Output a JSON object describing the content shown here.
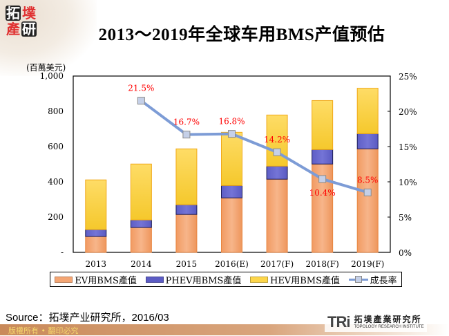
{
  "header": {
    "logo_chars": [
      "拓",
      "墣",
      "產",
      "研"
    ],
    "title": "2013～2019年全球车用BMS产值预估"
  },
  "chart_data": {
    "type": "bar",
    "stacked": true,
    "title": "2013～2019年全球车用BMS产值预估",
    "ylabel": "(百萬美元)",
    "ylabel_right": "",
    "xlabel": "",
    "categories": [
      "2013",
      "2014",
      "2015",
      "2016(E)",
      "2017(F)",
      "2018(F)",
      "2019(F)"
    ],
    "ylim": [
      0,
      1000
    ],
    "yticks": [
      0,
      200,
      400,
      600,
      800,
      1000
    ],
    "ytick_labels": [
      "-",
      "200",
      "400",
      "600",
      "800",
      "1,000"
    ],
    "y2lim": [
      0,
      25
    ],
    "y2ticks": [
      0,
      5,
      10,
      15,
      20,
      25
    ],
    "y2tick_labels": [
      "0%",
      "5%",
      "10%",
      "15%",
      "20%",
      "25%"
    ],
    "series": [
      {
        "name": "EV用BMS產值",
        "type": "bar",
        "axis": "left",
        "color": "#f4a674",
        "values": [
          90,
          141,
          215,
          309,
          415,
          501,
          587
        ]
      },
      {
        "name": "PHEV用BMS產值",
        "type": "bar",
        "axis": "left",
        "color": "#6b6bcf",
        "values": [
          39,
          43,
          55,
          70,
          74,
          82,
          86
        ]
      },
      {
        "name": "HEV用BMS產值",
        "type": "bar",
        "axis": "left",
        "color": "#fdd64a",
        "values": [
          282,
          317,
          317,
          302,
          290,
          278,
          258
        ]
      },
      {
        "name": "成長率",
        "type": "line",
        "axis": "right",
        "color": "#7d9cd6",
        "values": [
          null,
          21.5,
          16.7,
          16.8,
          14.2,
          10.4,
          8.5
        ],
        "labels": [
          "",
          "21.5%",
          "16.7%",
          "16.8%",
          "14.2%",
          "10.4%",
          "8.5%"
        ]
      }
    ],
    "totals": [
      411,
      501,
      587,
      681,
      779,
      861,
      931
    ],
    "legend_position": "bottom",
    "grid": false
  },
  "legend": [
    {
      "label": "EV用BMS產值",
      "kind": "bar",
      "color": "#f4a674"
    },
    {
      "label": "PHEV用BMS產值",
      "kind": "bar",
      "color": "#6b6bcf"
    },
    {
      "label": "HEV用BMS產值",
      "kind": "bar",
      "color": "#fdd64a"
    },
    {
      "label": "成長率",
      "kind": "line",
      "color": "#7d9cd6"
    }
  ],
  "source": "Source：拓墣产业研究所，2016/03",
  "footer": {
    "copyright": "版權所有 • 翻印必究",
    "org_mark": "TRi",
    "org_name_cn": "拓墣產業研究所",
    "org_name_en": "TOPOLOGY RESEARCH INSTITUTE"
  }
}
